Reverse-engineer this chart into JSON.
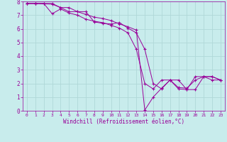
{
  "background_color": "#c8ecec",
  "grid_color": "#b0d8d8",
  "line_color": "#990099",
  "marker": "+",
  "xlabel": "Windchill (Refroidissement éolien,°C)",
  "xlim": [
    -0.5,
    23.5
  ],
  "ylim": [
    0,
    8
  ],
  "xticks": [
    0,
    1,
    2,
    3,
    4,
    5,
    6,
    7,
    8,
    9,
    10,
    11,
    12,
    13,
    14,
    15,
    16,
    17,
    18,
    19,
    20,
    21,
    22,
    23
  ],
  "yticks": [
    0,
    1,
    2,
    3,
    4,
    5,
    6,
    7,
    8
  ],
  "series1_x": [
    0,
    1,
    3,
    4,
    5,
    6,
    7,
    8,
    9,
    10,
    11,
    12,
    13,
    14,
    15,
    16,
    17,
    18,
    19,
    20,
    21,
    22,
    23
  ],
  "series1_y": [
    7.85,
    7.85,
    7.8,
    7.55,
    7.25,
    7.25,
    7.25,
    6.5,
    6.4,
    6.35,
    6.45,
    6.05,
    5.7,
    4.5,
    2.0,
    1.6,
    2.25,
    2.25,
    1.55,
    1.55,
    2.5,
    2.5,
    2.25
  ],
  "series2_x": [
    0,
    1,
    2,
    3,
    4,
    5,
    6,
    7,
    8,
    9,
    10,
    11,
    12,
    13,
    14,
    15,
    16,
    17,
    18,
    19,
    20,
    21,
    22,
    23
  ],
  "series2_y": [
    7.85,
    7.85,
    7.85,
    7.1,
    7.45,
    7.15,
    7.0,
    6.7,
    6.55,
    6.45,
    6.25,
    6.05,
    5.7,
    4.5,
    2.0,
    1.6,
    2.25,
    2.25,
    1.6,
    1.55,
    2.5,
    2.5,
    2.25,
    2.25
  ],
  "series3_x": [
    0,
    1,
    2,
    3,
    4,
    5,
    6,
    7,
    8,
    9,
    10,
    11,
    12,
    13,
    14,
    15,
    16,
    17,
    18,
    19,
    20,
    21,
    22,
    23
  ],
  "series3_y": [
    7.85,
    7.85,
    7.85,
    7.85,
    7.55,
    7.55,
    7.25,
    7.05,
    6.85,
    6.75,
    6.6,
    6.35,
    6.15,
    5.9,
    0.05,
    1.0,
    1.65,
    2.25,
    1.7,
    1.65,
    2.25,
    2.5,
    2.5,
    2.25
  ]
}
